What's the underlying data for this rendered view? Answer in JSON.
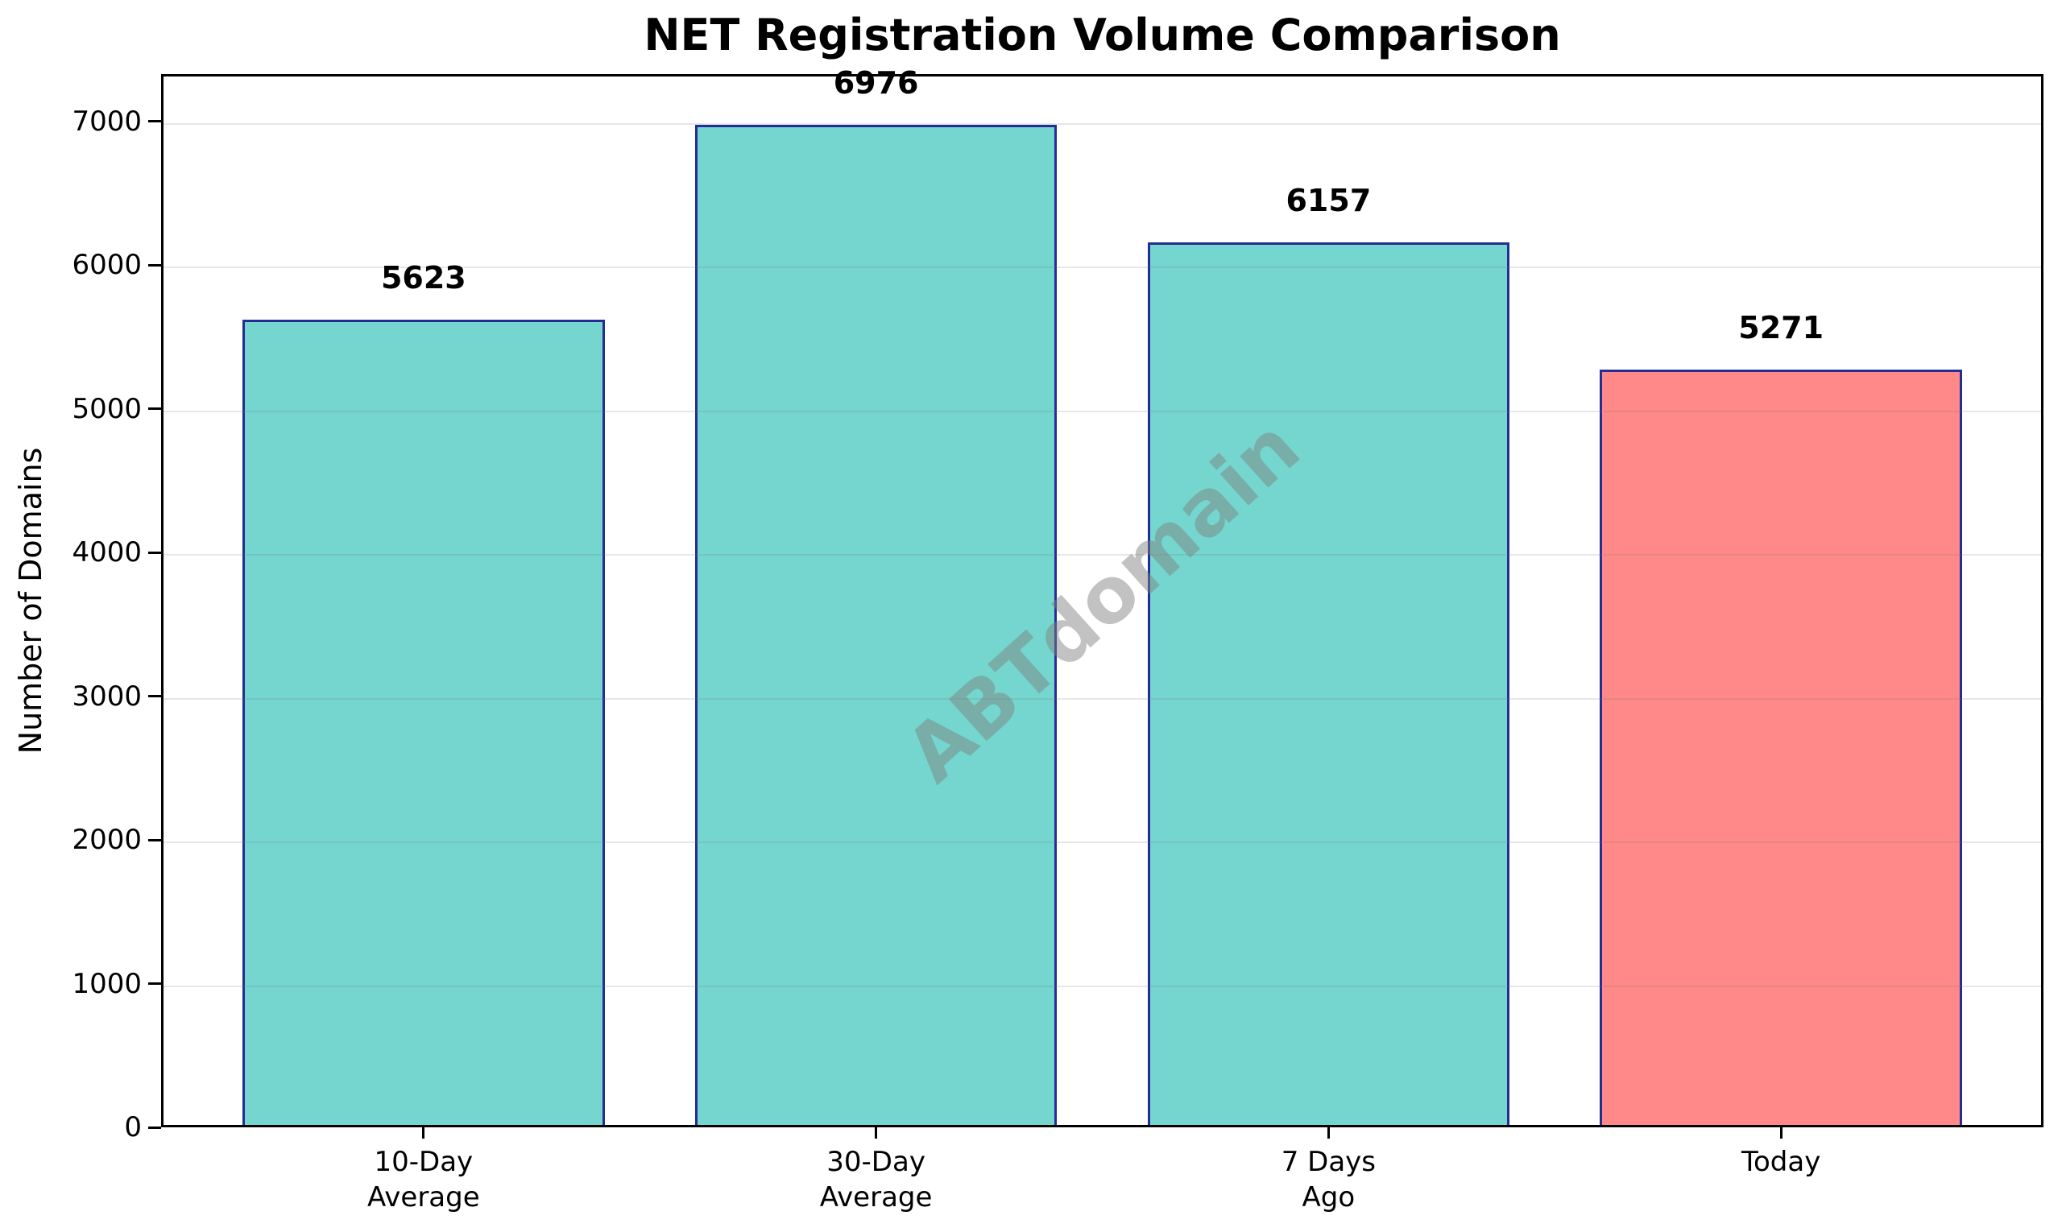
{
  "chart_data": {
    "type": "bar",
    "title": "NET Registration Volume Comparison",
    "ylabel": "Number of Domains",
    "xlabel": "",
    "categories": [
      "10-Day\nAverage",
      "30-Day\nAverage",
      "7 Days\nAgo",
      "Today"
    ],
    "values": [
      5623,
      6976,
      6157,
      5271
    ],
    "value_labels": [
      "5623",
      "6976",
      "6157",
      "5271"
    ],
    "bar_colors": [
      "#74D6CE",
      "#74D6CE",
      "#74D6CE",
      "#FF8888"
    ],
    "bar_edge_color": "#232D96",
    "yticks": [
      0,
      1000,
      2000,
      3000,
      4000,
      5000,
      6000,
      7000
    ],
    "ylim": [
      0,
      7330
    ],
    "grid": "horizontal-light-gray-over-bars",
    "legend_position": "none",
    "watermark": "ABTdomain"
  }
}
